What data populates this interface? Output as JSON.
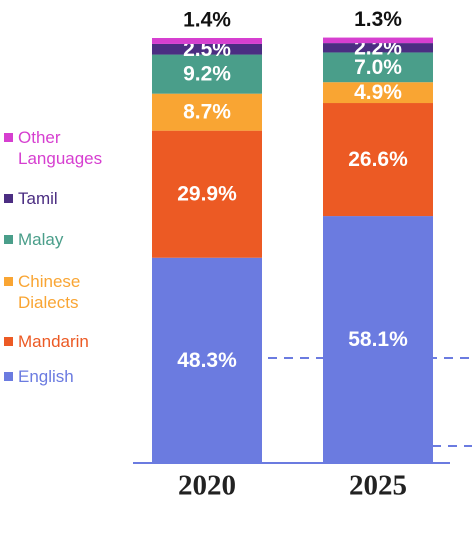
{
  "chart_data": {
    "type": "stacked_bar",
    "categories": [
      "2020",
      "2025"
    ],
    "series": [
      {
        "name": "English",
        "color": "#6b7be0",
        "values": [
          48.3,
          58.1
        ],
        "value_labels": [
          "48.3%",
          "58.1%"
        ]
      },
      {
        "name": "Mandarin",
        "color": "#ec5a24",
        "values": [
          29.9,
          26.6
        ],
        "value_labels": [
          "29.9%",
          "26.6%"
        ]
      },
      {
        "name": "Chinese Dialects",
        "color": "#f9a533",
        "values": [
          8.7,
          4.9
        ],
        "value_labels": [
          "8.7%",
          "4.9%"
        ]
      },
      {
        "name": "Malay",
        "color": "#4a9e8a",
        "values": [
          9.2,
          7.0
        ],
        "value_labels": [
          "9.2%",
          "7.0%"
        ]
      },
      {
        "name": "Tamil",
        "color": "#4b2d82",
        "values": [
          2.5,
          2.2
        ],
        "value_labels": [
          "2.5%",
          "2.2%"
        ]
      },
      {
        "name": "Other Languages",
        "color": "#d63fd0",
        "values": [
          1.4,
          1.3
        ],
        "value_labels": [
          "1.4%",
          "1.3%"
        ]
      }
    ]
  }
}
